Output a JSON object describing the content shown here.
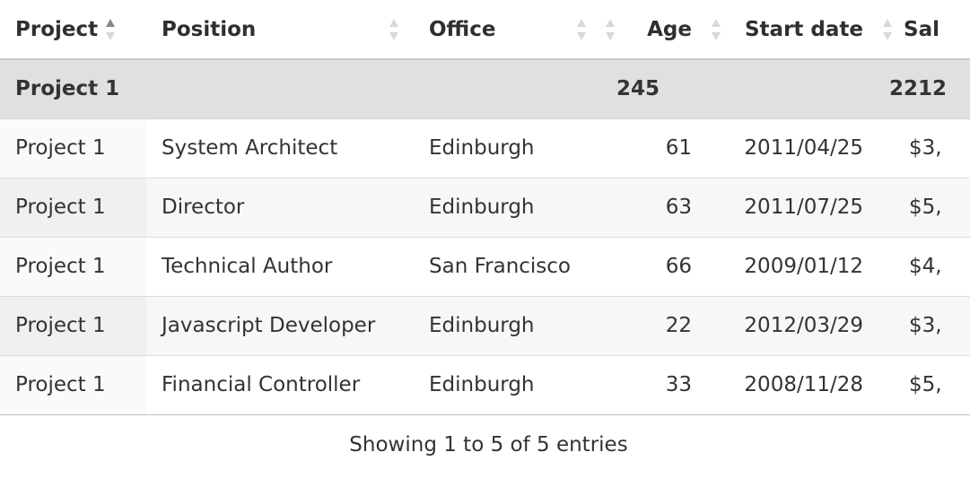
{
  "columns": {
    "project": "Project",
    "position": "Position",
    "office": "Office",
    "age": "Age",
    "start_date": "Start date",
    "salary": "Sal"
  },
  "group": {
    "label": "Project 1",
    "age_total": "245",
    "salary_total": "2212"
  },
  "rows": [
    {
      "project": "Project 1",
      "position": "System Architect",
      "office": "Edinburgh",
      "age": "61",
      "start_date": "2011/04/25",
      "salary": "$3,"
    },
    {
      "project": "Project 1",
      "position": "Director",
      "office": "Edinburgh",
      "age": "63",
      "start_date": "2011/07/25",
      "salary": "$5,"
    },
    {
      "project": "Project 1",
      "position": "Technical Author",
      "office": "San Francisco",
      "age": "66",
      "start_date": "2009/01/12",
      "salary": "$4,"
    },
    {
      "project": "Project 1",
      "position": "Javascript Developer",
      "office": "Edinburgh",
      "age": "22",
      "start_date": "2012/03/29",
      "salary": "$3,"
    },
    {
      "project": "Project 1",
      "position": "Financial Controller",
      "office": "Edinburgh",
      "age": "33",
      "start_date": "2008/11/28",
      "salary": "$5,"
    }
  ],
  "sorted_column": "project",
  "sort_direction": "ascending",
  "info_text": "Showing 1 to 5 of 5 entries",
  "colors": {
    "group_background": "#e0e0e0",
    "row_even_background": "#f7f7f7",
    "text": "#333333"
  }
}
